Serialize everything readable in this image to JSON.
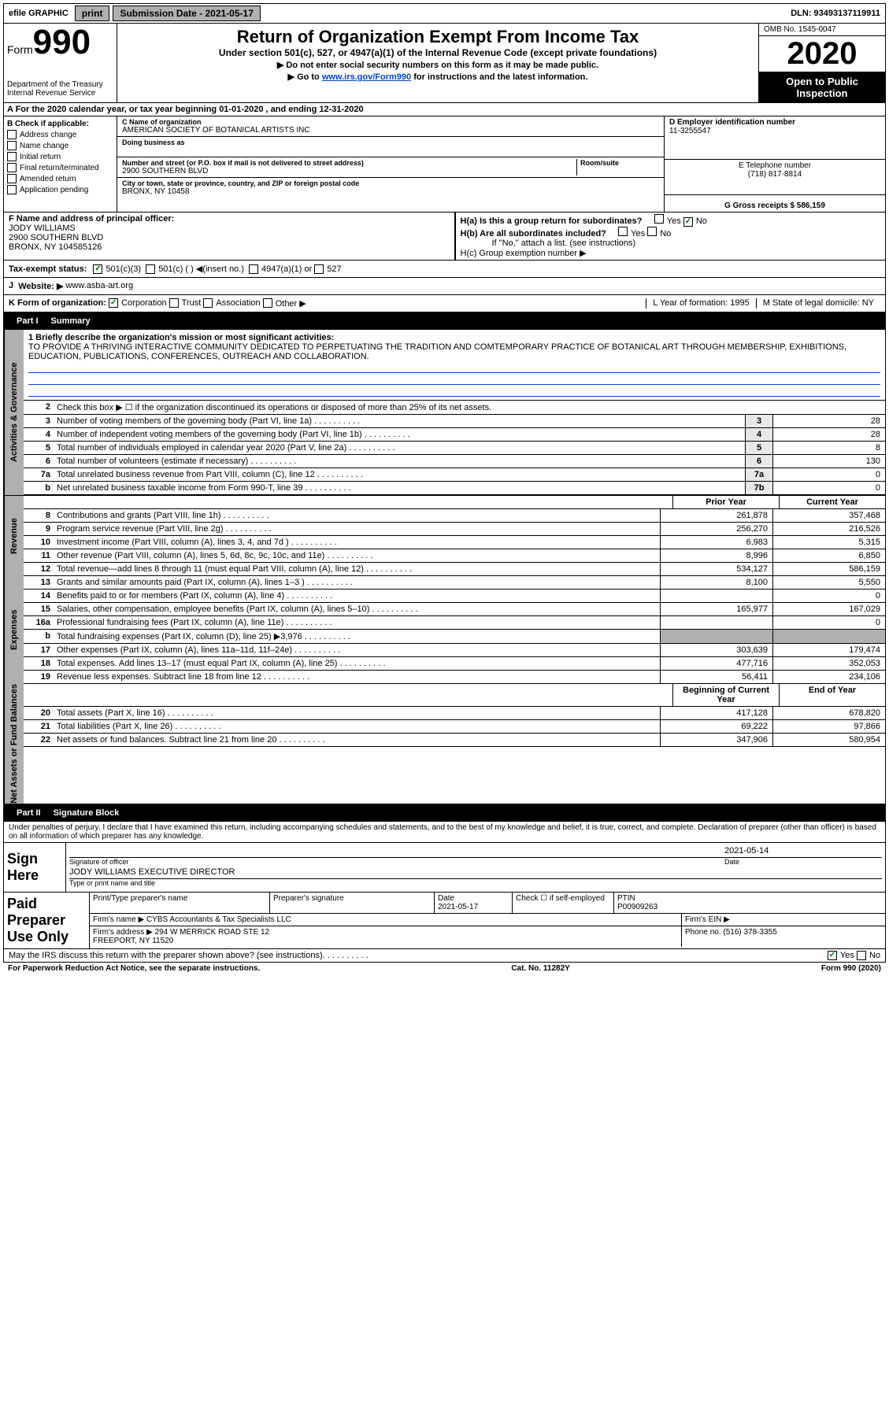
{
  "topbar": {
    "efile": "efile GRAPHIC",
    "print": "print",
    "subdate_label": "Submission Date - 2021-05-17",
    "dln": "DLN: 93493137119911"
  },
  "header": {
    "form_label": "Form",
    "form_num": "990",
    "dept": "Department of the Treasury\nInternal Revenue Service",
    "title": "Return of Organization Exempt From Income Tax",
    "subtitle": "Under section 501(c), 527, or 4947(a)(1) of the Internal Revenue Code (except private foundations)",
    "line1": "▶ Do not enter social security numbers on this form as it may be made public.",
    "line2_pre": "▶ Go to ",
    "line2_link": "www.irs.gov/Form990",
    "line2_post": " for instructions and the latest information.",
    "omb": "OMB No. 1545-0047",
    "year": "2020",
    "open": "Open to Public Inspection"
  },
  "section_a": "A For the 2020 calendar year, or tax year beginning 01-01-2020   , and ending 12-31-2020",
  "check_b": {
    "label": "B Check if applicable:",
    "items": [
      "Address change",
      "Name change",
      "Initial return",
      "Final return/terminated",
      "Amended return",
      "Application pending"
    ]
  },
  "name_block": {
    "c_label": "C Name of organization",
    "c_val": "AMERICAN SOCIETY OF BOTANICAL ARTISTS INC",
    "dba_label": "Doing business as",
    "addr_label": "Number and street (or P.O. box if mail is not delivered to street address)",
    "room_label": "Room/suite",
    "addr_val": "2900 SOUTHERN BLVD",
    "city_label": "City or town, state or province, country, and ZIP or foreign postal code",
    "city_val": "BRONX, NY  10458"
  },
  "right_block": {
    "d_label": "D Employer identification number",
    "d_val": "11-3255547",
    "e_label": "E Telephone number",
    "e_val": "(718) 817-8814",
    "g_label": "G Gross receipts $ 586,159"
  },
  "officer": {
    "f_label": "F  Name and address of principal officer:",
    "name": "JODY WILLIAMS",
    "addr1": "2900 SOUTHERN BLVD",
    "addr2": "BRONX, NY  104585126"
  },
  "h_block": {
    "ha": "H(a)  Is this a group return for subordinates?",
    "hb": "H(b)  Are all subordinates included?",
    "hb_note": "If \"No,\" attach a list. (see instructions)",
    "hc": "H(c)  Group exemption number ▶",
    "yes": "Yes",
    "no": "No"
  },
  "tax_exempt": {
    "label": "Tax-exempt status:",
    "c3": "501(c)(3)",
    "c": "501(c) (  ) ◀(insert no.)",
    "a4947": "4947(a)(1) or",
    "s527": "527"
  },
  "website": {
    "j": "J",
    "label": "Website: ▶",
    "val": "www.asba-art.org"
  },
  "korg": {
    "k_label": "K Form of organization:",
    "corp": "Corporation",
    "trust": "Trust",
    "assoc": "Association",
    "other": "Other ▶",
    "l": "L Year of formation: 1995",
    "m": "M State of legal domicile: NY"
  },
  "part1": {
    "label": "Part I",
    "title": "Summary"
  },
  "mission": {
    "q": "1  Briefly describe the organization's mission or most significant activities:",
    "text": "TO PROVIDE A THRIVING INTERACTIVE COMMUNITY DEDICATED TO PERPETUATING THE TRADITION AND COMTEMPORARY PRACTICE OF BOTANICAL ART THROUGH MEMBERSHIP, EXHIBITIONS, EDUCATION, PUBLICATIONS, CONFERENCES, OUTREACH AND COLLABORATION."
  },
  "line2_check": "Check this box ▶ ☐  if the organization discontinued its operations or disposed of more than 25% of its net assets.",
  "gov_lines": [
    {
      "n": "3",
      "d": "Number of voting members of the governing body (Part VI, line 1a)",
      "box": "3",
      "v": "28"
    },
    {
      "n": "4",
      "d": "Number of independent voting members of the governing body (Part VI, line 1b)",
      "box": "4",
      "v": "28"
    },
    {
      "n": "5",
      "d": "Total number of individuals employed in calendar year 2020 (Part V, line 2a)",
      "box": "5",
      "v": "8"
    },
    {
      "n": "6",
      "d": "Total number of volunteers (estimate if necessary)",
      "box": "6",
      "v": "130"
    },
    {
      "n": "7a",
      "d": "Total unrelated business revenue from Part VIII, column (C), line 12",
      "box": "7a",
      "v": "0"
    },
    {
      "n": "b",
      "d": "Net unrelated business taxable income from Form 990-T, line 39",
      "box": "7b",
      "v": "0"
    }
  ],
  "col_hdr": {
    "prior": "Prior Year",
    "current": "Current Year"
  },
  "rev_lines": [
    {
      "n": "8",
      "d": "Contributions and grants (Part VIII, line 1h)",
      "p": "261,878",
      "c": "357,468"
    },
    {
      "n": "9",
      "d": "Program service revenue (Part VIII, line 2g)",
      "p": "256,270",
      "c": "216,526"
    },
    {
      "n": "10",
      "d": "Investment income (Part VIII, column (A), lines 3, 4, and 7d )",
      "p": "6,983",
      "c": "5,315"
    },
    {
      "n": "11",
      "d": "Other revenue (Part VIII, column (A), lines 5, 6d, 8c, 9c, 10c, and 11e)",
      "p": "8,996",
      "c": "6,850"
    },
    {
      "n": "12",
      "d": "Total revenue—add lines 8 through 11 (must equal Part VIII, column (A), line 12)",
      "p": "534,127",
      "c": "586,159"
    }
  ],
  "exp_lines": [
    {
      "n": "13",
      "d": "Grants and similar amounts paid (Part IX, column (A), lines 1–3 )",
      "p": "8,100",
      "c": "5,550"
    },
    {
      "n": "14",
      "d": "Benefits paid to or for members (Part IX, column (A), line 4)",
      "p": "",
      "c": "0"
    },
    {
      "n": "15",
      "d": "Salaries, other compensation, employee benefits (Part IX, column (A), lines 5–10)",
      "p": "165,977",
      "c": "167,029"
    },
    {
      "n": "16a",
      "d": "Professional fundraising fees (Part IX, column (A), line 11e)",
      "p": "",
      "c": "0"
    },
    {
      "n": "b",
      "d": "Total fundraising expenses (Part IX, column (D), line 25) ▶3,976",
      "p": "GRAY",
      "c": "GRAY"
    },
    {
      "n": "17",
      "d": "Other expenses (Part IX, column (A), lines 11a–11d, 11f–24e)",
      "p": "303,639",
      "c": "179,474"
    },
    {
      "n": "18",
      "d": "Total expenses. Add lines 13–17 (must equal Part IX, column (A), line 25)",
      "p": "477,716",
      "c": "352,053"
    },
    {
      "n": "19",
      "d": "Revenue less expenses. Subtract line 18 from line 12",
      "p": "56,411",
      "c": "234,106"
    }
  ],
  "bal_hdr": {
    "begin": "Beginning of Current Year",
    "end": "End of Year"
  },
  "bal_lines": [
    {
      "n": "20",
      "d": "Total assets (Part X, line 16)",
      "p": "417,128",
      "c": "678,820"
    },
    {
      "n": "21",
      "d": "Total liabilities (Part X, line 26)",
      "p": "69,222",
      "c": "97,866"
    },
    {
      "n": "22",
      "d": "Net assets or fund balances. Subtract line 21 from line 20",
      "p": "347,906",
      "c": "580,954"
    }
  ],
  "part2": {
    "label": "Part II",
    "title": "Signature Block"
  },
  "sig": {
    "penalty": "Under penalties of perjury, I declare that I have examined this return, including accompanying schedules and statements, and to the best of my knowledge and belief, it is true, correct, and complete. Declaration of preparer (other than officer) is based on all information of which preparer has any knowledge.",
    "sign_here": "Sign Here",
    "sig_off": "Signature of officer",
    "date": "Date",
    "date_val": "2021-05-14",
    "name": "JODY WILLIAMS  EXECUTIVE DIRECTOR",
    "type_label": "Type or print name and title"
  },
  "paid": {
    "label": "Paid Preparer Use Only",
    "h1": "Print/Type preparer's name",
    "h2": "Preparer's signature",
    "h3": "Date",
    "h3v": "2021-05-17",
    "h4": "Check ☐ if self-employed",
    "h5": "PTIN",
    "h5v": "P00909263",
    "firm": "Firm's name    ▶ CYBS Accountants & Tax Specialists LLC",
    "ein": "Firm's EIN ▶",
    "addr": "Firm's address ▶ 294 W MERRICK ROAD STE 12",
    "addr2": "FREEPORT, NY  11520",
    "phone": "Phone no. (516) 378-3355"
  },
  "discuss": "May the IRS discuss this return with the preparer shown above? (see instructions)",
  "footer": {
    "left": "For Paperwork Reduction Act Notice, see the separate instructions.",
    "mid": "Cat. No. 11282Y",
    "right": "Form 990 (2020)"
  },
  "side_tabs": {
    "gov": "Activities & Governance",
    "rev": "Revenue",
    "exp": "Expenses",
    "bal": "Net Assets or Fund Balances"
  }
}
